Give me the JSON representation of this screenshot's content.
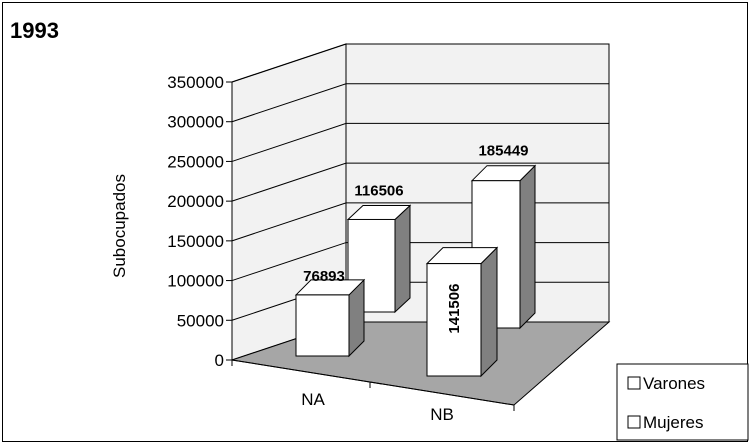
{
  "chart_data": {
    "type": "bar",
    "title": "1993",
    "ylabel": "Subocupados",
    "xlabel": "",
    "categories": [
      "NA",
      "NB"
    ],
    "series": [
      {
        "name": "Varones",
        "values": [
          76893,
          141506
        ]
      },
      {
        "name": "Mujeres",
        "values": [
          116506,
          185449
        ]
      }
    ],
    "ylim": [
      0,
      350000
    ],
    "yticks": [
      0,
      50000,
      100000,
      150000,
      200000,
      250000,
      300000,
      350000
    ],
    "grid": true,
    "legend": "bottom-right",
    "colors": {
      "bar_front": "#ffffff",
      "bar_side": "#808080",
      "bar_top": "#ffffff",
      "wall": "#f2f2f2",
      "floor": "#a6a6a6"
    }
  }
}
